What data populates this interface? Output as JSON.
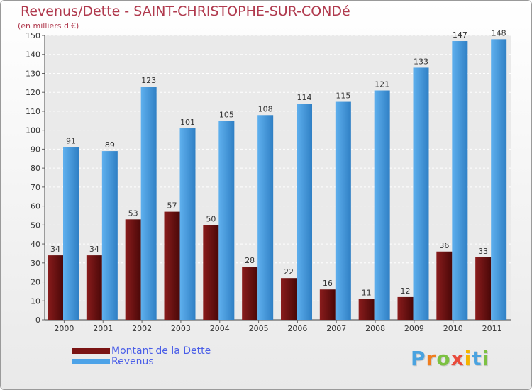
{
  "chart_data": {
    "type": "bar",
    "title": "Revenus/Dette - SAINT-CHRISTOPHE-SUR-CONDé",
    "subtitle": "(en milliers d'€)",
    "xlabel": "",
    "ylabel": "",
    "ylim": [
      0,
      150
    ],
    "yticks": [
      0,
      10,
      20,
      30,
      40,
      50,
      60,
      70,
      80,
      90,
      100,
      110,
      120,
      130,
      140,
      150
    ],
    "grid": true,
    "legend_position": "bottom-left",
    "categories": [
      "2000",
      "2001",
      "2002",
      "2003",
      "2004",
      "2005",
      "2006",
      "2007",
      "2008",
      "2009",
      "2010",
      "2011"
    ],
    "series": [
      {
        "name": "Montant de la Dette",
        "color": "#7a1414",
        "values": [
          34,
          34,
          53,
          57,
          50,
          28,
          22,
          16,
          11,
          12,
          36,
          33
        ]
      },
      {
        "name": "Revenus",
        "color": "#4da3e8",
        "values": [
          91,
          89,
          123,
          101,
          105,
          108,
          114,
          115,
          121,
          133,
          147,
          148
        ]
      }
    ]
  },
  "logo": {
    "letters": [
      "P",
      "r",
      "o",
      "x",
      "i",
      "t",
      "i"
    ],
    "colors": [
      "#4aa3e0",
      "#f07d1e",
      "#7cc142",
      "#e94b3c",
      "#f5b400",
      "#4aa3e0",
      "#7cc142"
    ]
  }
}
